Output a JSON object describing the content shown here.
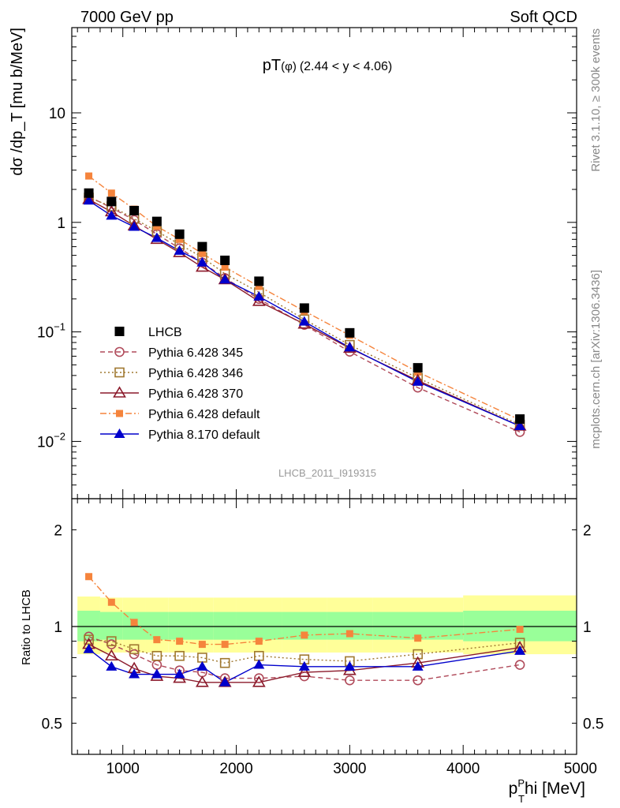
{
  "header": {
    "left": "7000 GeV pp",
    "right": "Soft QCD"
  },
  "side_labels": {
    "rivet": "Rivet 3.1.10, ≥ 300k events",
    "mcplots": "mcplots.cern.ch [arXiv:1306.3436]"
  },
  "chart_data": [
    {
      "type": "scatter",
      "panel": "main",
      "title_main": "pT",
      "title_sym": "(φ)",
      "title_range": "(2.44 < y < 4.06)",
      "watermark": "LHCB_2011_I919315",
      "ylabel": "dσ /dp_T [mu b/MeV]",
      "y_scale": "log",
      "xlim": [
        550,
        5000
      ],
      "ylim": [
        0.003,
        60
      ],
      "x_ticks": [
        1000,
        2000,
        3000,
        4000,
        5000
      ],
      "y_ticks": [
        {
          "value": 0.01,
          "base": "10",
          "exp": "−2"
        },
        {
          "value": 0.1,
          "base": "10",
          "exp": "−1"
        },
        {
          "value": 1,
          "base": "1",
          "exp": ""
        },
        {
          "value": 10,
          "base": "10",
          "exp": ""
        }
      ],
      "x": [
        700,
        900,
        1100,
        1300,
        1500,
        1700,
        1900,
        2200,
        2600,
        3000,
        3600,
        4500
      ],
      "legend_position": "bottom-left",
      "series": [
        {
          "name": "LHCB",
          "color": "#000000",
          "marker": "filled-square",
          "line": "none",
          "values": [
            1.85,
            1.55,
            1.28,
            1.02,
            0.78,
            0.6,
            0.45,
            0.29,
            0.165,
            0.098,
            0.047,
            0.016
          ]
        },
        {
          "name": "Pythia 6.428 345",
          "color": "#b04a5a",
          "marker": "open-circle",
          "line": "dashed",
          "values": [
            1.72,
            1.36,
            1.05,
            0.78,
            0.58,
            0.43,
            0.31,
            0.2,
            0.116,
            0.066,
            0.031,
            0.0122
          ]
        },
        {
          "name": "Pythia 6.428 346",
          "color": "#a07830",
          "marker": "open-square",
          "line": "dotted",
          "values": [
            1.68,
            1.4,
            1.08,
            0.83,
            0.63,
            0.48,
            0.34,
            0.23,
            0.13,
            0.076,
            0.038,
            0.0142
          ]
        },
        {
          "name": "Pythia 6.428 370",
          "color": "#8b1a2b",
          "marker": "open-triangle",
          "line": "solid",
          "values": [
            1.62,
            1.25,
            0.93,
            0.7,
            0.53,
            0.39,
            0.3,
            0.19,
            0.118,
            0.071,
            0.036,
            0.0138
          ]
        },
        {
          "name": "Pythia 6.428 default",
          "color": "#f5843c",
          "marker": "filled-small-square",
          "line": "dashdot",
          "values": [
            2.65,
            1.85,
            1.32,
            0.92,
            0.7,
            0.52,
            0.39,
            0.26,
            0.155,
            0.093,
            0.043,
            0.0157
          ]
        },
        {
          "name": "Pythia 8.170 default",
          "color": "#0000cc",
          "marker": "filled-triangle",
          "line": "solid",
          "values": [
            1.58,
            1.15,
            0.91,
            0.72,
            0.55,
            0.43,
            0.3,
            0.21,
            0.124,
            0.072,
            0.035,
            0.0138
          ]
        }
      ]
    },
    {
      "type": "scatter",
      "panel": "ratio",
      "ylabel": "Ratio to LHCB",
      "xlabel_main": "p",
      "xlabel_sub": "T",
      "xlabel_sup": "P",
      "xlabel_rest": "hi [MeV]",
      "y_scale": "log",
      "xlim": [
        550,
        5000
      ],
      "ylim": [
        0.4,
        2.5
      ],
      "x_ticks": [
        1000,
        2000,
        3000,
        4000,
        5000
      ],
      "y_ticks": [
        0.5,
        1,
        2
      ],
      "reference_line": 1,
      "bands": {
        "x_edges": [
          600,
          800,
          1000,
          1200,
          1400,
          1600,
          1800,
          2000,
          2400,
          2800,
          3200,
          4000,
          5000
        ],
        "outer_color": "#ffff99",
        "inner_color": "#99ff99",
        "outer": [
          [
            0.82,
            1.24
          ],
          [
            0.83,
            1.23
          ],
          [
            0.83,
            1.23
          ],
          [
            0.83,
            1.23
          ],
          [
            0.83,
            1.23
          ],
          [
            0.83,
            1.23
          ],
          [
            0.83,
            1.23
          ],
          [
            0.83,
            1.23
          ],
          [
            0.83,
            1.23
          ],
          [
            0.83,
            1.23
          ],
          [
            0.83,
            1.23
          ],
          [
            0.82,
            1.25
          ]
        ],
        "inner": [
          [
            0.9,
            1.12
          ],
          [
            0.91,
            1.11
          ],
          [
            0.91,
            1.11
          ],
          [
            0.91,
            1.11
          ],
          [
            0.91,
            1.11
          ],
          [
            0.91,
            1.11
          ],
          [
            0.91,
            1.11
          ],
          [
            0.91,
            1.11
          ],
          [
            0.91,
            1.11
          ],
          [
            0.91,
            1.11
          ],
          [
            0.91,
            1.11
          ],
          [
            0.9,
            1.12
          ]
        ]
      },
      "x": [
        700,
        900,
        1100,
        1300,
        1500,
        1700,
        1900,
        2200,
        2600,
        3000,
        3600,
        4500
      ],
      "series": [
        {
          "name": "Pythia 6.428 345",
          "values": [
            0.93,
            0.88,
            0.82,
            0.76,
            0.73,
            0.72,
            0.69,
            0.69,
            0.7,
            0.68,
            0.68,
            0.76
          ]
        },
        {
          "name": "Pythia 6.428 346",
          "values": [
            0.91,
            0.9,
            0.85,
            0.81,
            0.81,
            0.8,
            0.77,
            0.81,
            0.79,
            0.78,
            0.82,
            0.89
          ]
        },
        {
          "name": "Pythia 6.428 370",
          "values": [
            0.88,
            0.81,
            0.74,
            0.7,
            0.69,
            0.67,
            0.67,
            0.67,
            0.72,
            0.73,
            0.77,
            0.86
          ]
        },
        {
          "name": "Pythia 6.428 default",
          "values": [
            1.43,
            1.19,
            1.03,
            0.91,
            0.9,
            0.88,
            0.88,
            0.9,
            0.94,
            0.95,
            0.92,
            0.98
          ]
        },
        {
          "name": "Pythia 8.170 default",
          "values": [
            0.85,
            0.75,
            0.71,
            0.71,
            0.71,
            0.75,
            0.67,
            0.76,
            0.75,
            0.75,
            0.75,
            0.84
          ]
        }
      ]
    }
  ]
}
